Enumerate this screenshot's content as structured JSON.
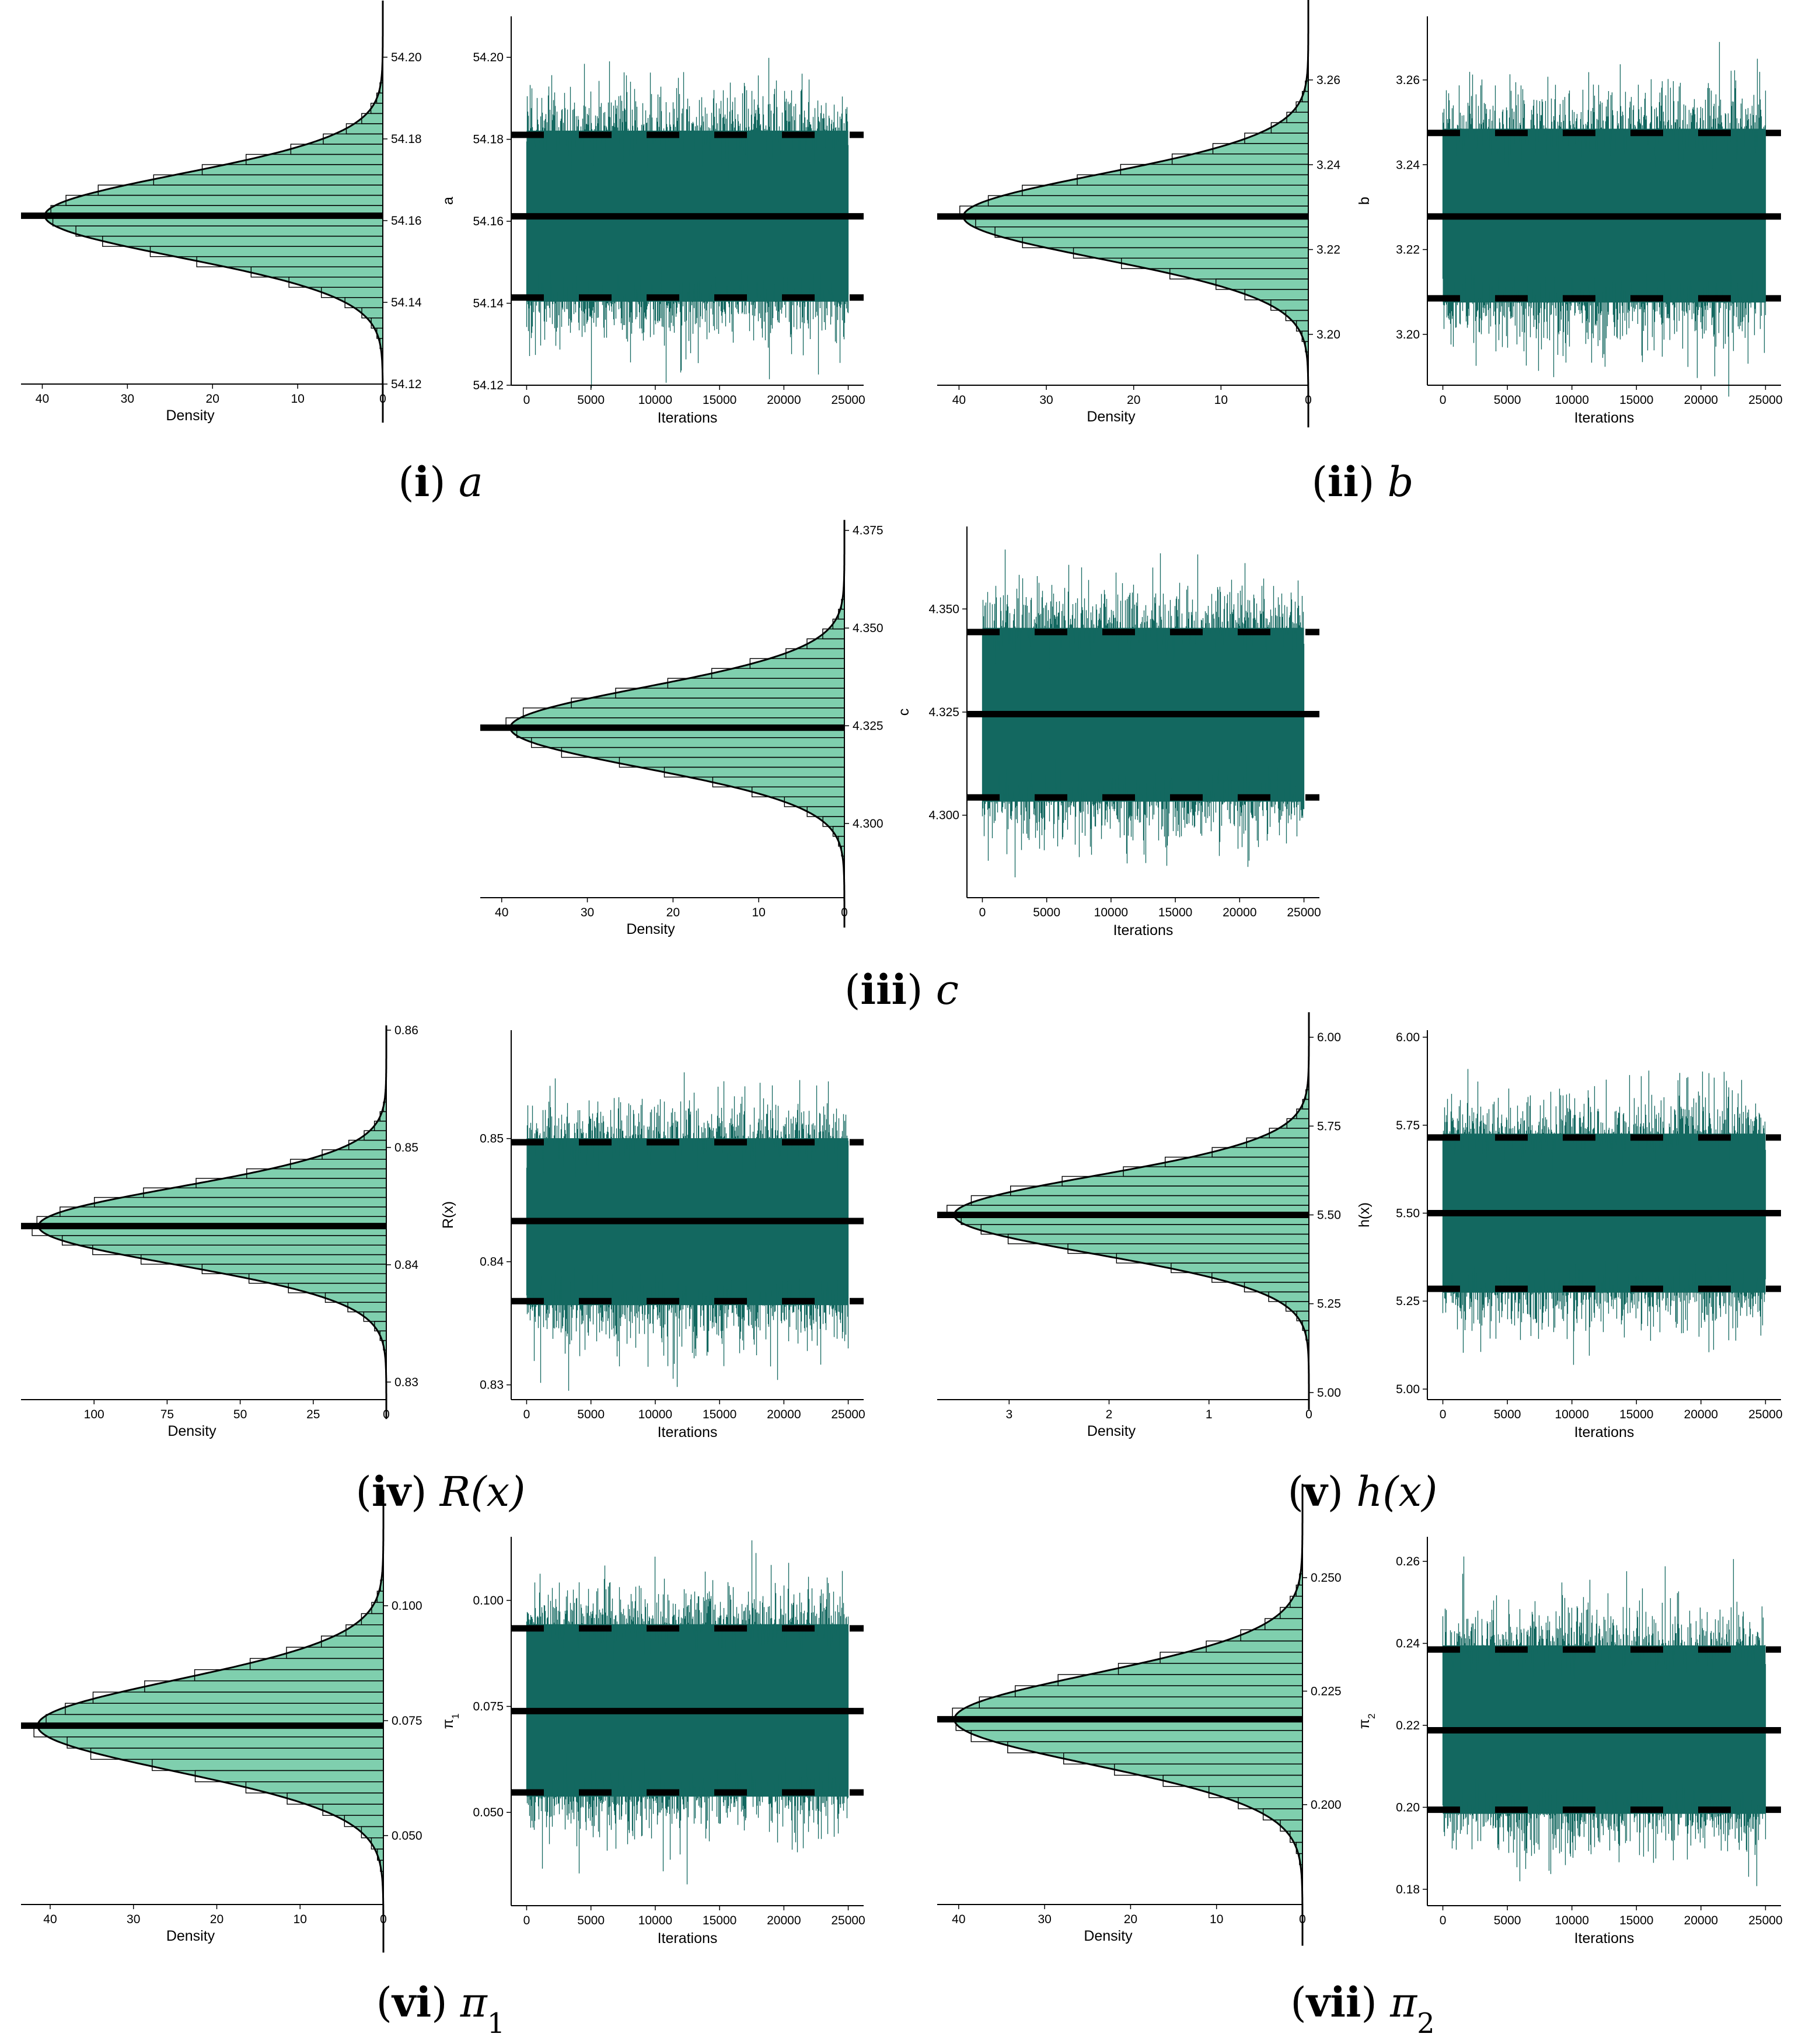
{
  "colors": {
    "trace": "#136860",
    "hist_fill": "#7fcfae",
    "line": "#000000"
  },
  "panels": [
    {
      "id": "a",
      "caption": {
        "label": "i",
        "sym": "a",
        "sub": ""
      },
      "mean": 54.1612,
      "lower": 54.1414,
      "upper": 54.1811,
      "chart_data": [
        {
          "type": "histogram",
          "orientation": "horizontal",
          "xlabel": "Density",
          "x_ticks": [
            "40",
            "30",
            "20",
            "10",
            "0"
          ],
          "xlim": [
            42.5,
            0
          ],
          "y_ticks": [
            "54.12",
            "54.14",
            "54.16",
            "54.18",
            "54.20"
          ],
          "ylim": [
            54.12,
            54.21
          ],
          "peak_density": 39.7,
          "hline_solid": 54.1612
        },
        {
          "type": "line",
          "title": "",
          "ylabel": "a",
          "xlabel": "Iterations",
          "x_ticks": [
            "0",
            "5000",
            "10000",
            "15000",
            "20000",
            "25000"
          ],
          "xlim": [
            -1200,
            26200
          ],
          "y_ticks": [
            "54.12",
            "54.14",
            "54.16",
            "54.18",
            "54.20"
          ],
          "ylim": [
            54.12,
            54.21
          ],
          "n_iter": 25000,
          "hline_solid": 54.1612,
          "hlines_dashed": [
            54.1414,
            54.1811
          ]
        }
      ]
    },
    {
      "id": "b",
      "caption": {
        "label": "ii",
        "sym": "b",
        "sub": ""
      },
      "mean": 3.2278,
      "lower": 3.2085,
      "upper": 3.2475,
      "chart_data": [
        {
          "type": "histogram",
          "orientation": "horizontal",
          "xlabel": "Density",
          "x_ticks": [
            "40",
            "30",
            "20",
            "10",
            "0"
          ],
          "xlim": [
            42.5,
            0
          ],
          "y_ticks": [
            "3.20",
            "3.22",
            "3.24",
            "3.26"
          ],
          "ylim": [
            3.188,
            3.275
          ],
          "peak_density": 39.5,
          "hline_solid": 3.2278
        },
        {
          "type": "line",
          "ylabel": "b",
          "xlabel": "Iterations",
          "x_ticks": [
            "0",
            "5000",
            "10000",
            "15000",
            "20000",
            "25000"
          ],
          "xlim": [
            -1200,
            26200
          ],
          "y_ticks": [
            "3.20",
            "3.22",
            "3.24",
            "3.26"
          ],
          "ylim": [
            3.188,
            3.275
          ],
          "n_iter": 25000,
          "hline_solid": 3.2278,
          "hlines_dashed": [
            3.2085,
            3.2475
          ]
        }
      ]
    },
    {
      "id": "c",
      "caption": {
        "label": "iii",
        "sym": "c",
        "sub": ""
      },
      "mean": 4.3245,
      "lower": 4.3043,
      "upper": 4.3444,
      "chart_data": [
        {
          "type": "histogram",
          "orientation": "horizontal",
          "xlabel": "Density",
          "x_ticks": [
            "40",
            "30",
            "20",
            "10",
            "0"
          ],
          "xlim": [
            42.5,
            0
          ],
          "y_ticks": [
            "4.300",
            "4.325",
            "4.350",
            "4.375"
          ],
          "ylim": [
            4.281,
            4.376
          ],
          "peak_density": 39.0,
          "hline_solid": 4.3245
        },
        {
          "type": "line",
          "ylabel": "c",
          "xlabel": "Iterations",
          "x_ticks": [
            "0",
            "5000",
            "10000",
            "15000",
            "20000",
            "25000"
          ],
          "xlim": [
            -1200,
            26200
          ],
          "y_ticks": [
            "4.300",
            "4.325",
            "4.350"
          ],
          "ylim": [
            4.28,
            4.37
          ],
          "n_iter": 25000,
          "hline_solid": 4.3245,
          "hlines_dashed": [
            4.3043,
            4.3444
          ]
        }
      ]
    },
    {
      "id": "R",
      "caption": {
        "label": "iv",
        "sym": "R(x)",
        "sub": ""
      },
      "mean": 0.8433,
      "lower": 0.8368,
      "upper": 0.8497,
      "chart_data": [
        {
          "type": "histogram",
          "orientation": "horizontal",
          "xlabel": "Density",
          "x_ticks": [
            "100",
            "75",
            "50",
            "25",
            "0"
          ],
          "xlim": [
            125,
            0
          ],
          "y_ticks": [
            "0.83",
            "0.84",
            "0.85",
            "0.86"
          ],
          "ylim": [
            0.8285,
            0.86
          ],
          "peak_density": 119,
          "hline_solid": 0.8433
        },
        {
          "type": "line",
          "ylabel": "R(x)",
          "xlabel": "Iterations",
          "x_ticks": [
            "0",
            "5000",
            "10000",
            "15000",
            "20000",
            "25000"
          ],
          "xlim": [
            -1200,
            26200
          ],
          "y_ticks": [
            "0.83",
            "0.84",
            "0.85"
          ],
          "ylim": [
            0.8288,
            0.8588
          ],
          "n_iter": 25000,
          "hline_solid": 0.8433,
          "hlines_dashed": [
            0.8368,
            0.8497
          ]
        }
      ]
    },
    {
      "id": "h",
      "caption": {
        "label": "v",
        "sym": "h(x)",
        "sub": ""
      },
      "mean": 5.5,
      "lower": 5.285,
      "upper": 5.715,
      "chart_data": [
        {
          "type": "histogram",
          "orientation": "horizontal",
          "xlabel": "Density",
          "x_ticks": [
            "3",
            "2",
            "1",
            "0"
          ],
          "xlim": [
            3.72,
            0
          ],
          "y_ticks": [
            "5.00",
            "5.25",
            "5.50",
            "5.75",
            "6.00"
          ],
          "ylim": [
            4.98,
            6.02
          ],
          "peak_density": 3.55,
          "hline_solid": 5.5
        },
        {
          "type": "line",
          "ylabel": "h(x)",
          "xlabel": "Iterations",
          "x_ticks": [
            "0",
            "5000",
            "10000",
            "15000",
            "20000",
            "25000"
          ],
          "xlim": [
            -1200,
            26200
          ],
          "y_ticks": [
            "5.00",
            "5.25",
            "5.50",
            "5.75",
            "6.00"
          ],
          "ylim": [
            4.97,
            6.02
          ],
          "n_iter": 25000,
          "hline_solid": 5.5,
          "hlines_dashed": [
            5.285,
            5.715
          ]
        }
      ]
    },
    {
      "id": "pi1",
      "caption": {
        "label": "vi",
        "sym": "π",
        "sub": "1"
      },
      "mean": 0.0739,
      "lower": 0.0547,
      "upper": 0.0934,
      "chart_data": [
        {
          "type": "histogram",
          "orientation": "horizontal",
          "xlabel": "Density",
          "x_ticks": [
            "40",
            "30",
            "20",
            "10",
            "0"
          ],
          "xlim": [
            43.5,
            0
          ],
          "y_ticks": [
            "0.050",
            "0.075",
            "0.100"
          ],
          "ylim": [
            0.035,
            0.115
          ],
          "peak_density": 41.5,
          "hline_solid": 0.0739
        },
        {
          "type": "line",
          "ylabel": "π",
          "ylabel_sub": "1",
          "xlabel": "Iterations",
          "x_ticks": [
            "0",
            "5000",
            "10000",
            "15000",
            "20000",
            "25000"
          ],
          "xlim": [
            -1200,
            26200
          ],
          "y_ticks": [
            "0.050",
            "0.075",
            "0.100"
          ],
          "ylim": [
            0.028,
            0.115
          ],
          "n_iter": 25000,
          "hline_solid": 0.0739,
          "hlines_dashed": [
            0.0547,
            0.0934
          ]
        }
      ]
    },
    {
      "id": "pi2",
      "caption": {
        "label": "vii",
        "sym": "π",
        "sub": "2"
      },
      "mean": 0.2188,
      "lower": 0.1994,
      "upper": 0.2385,
      "chart_data": [
        {
          "type": "histogram",
          "orientation": "horizontal",
          "xlabel": "Density",
          "x_ticks": [
            "40",
            "30",
            "20",
            "10",
            "0"
          ],
          "xlim": [
            42.5,
            0
          ],
          "y_ticks": [
            "0.200",
            "0.225",
            "0.250"
          ],
          "ylim": [
            0.178,
            0.259
          ],
          "peak_density": 40.5,
          "hline_solid": 0.2188
        },
        {
          "type": "line",
          "ylabel": "π",
          "ylabel_sub": "2",
          "xlabel": "Iterations",
          "x_ticks": [
            "0",
            "5000",
            "10000",
            "15000",
            "20000",
            "25000"
          ],
          "xlim": [
            -1200,
            26200
          ],
          "y_ticks": [
            "0.18",
            "0.20",
            "0.22",
            "0.24",
            "0.26"
          ],
          "ylim": [
            0.176,
            0.266
          ],
          "n_iter": 25000,
          "hline_solid": 0.2188,
          "hlines_dashed": [
            0.1994,
            0.2385
          ]
        }
      ]
    }
  ]
}
